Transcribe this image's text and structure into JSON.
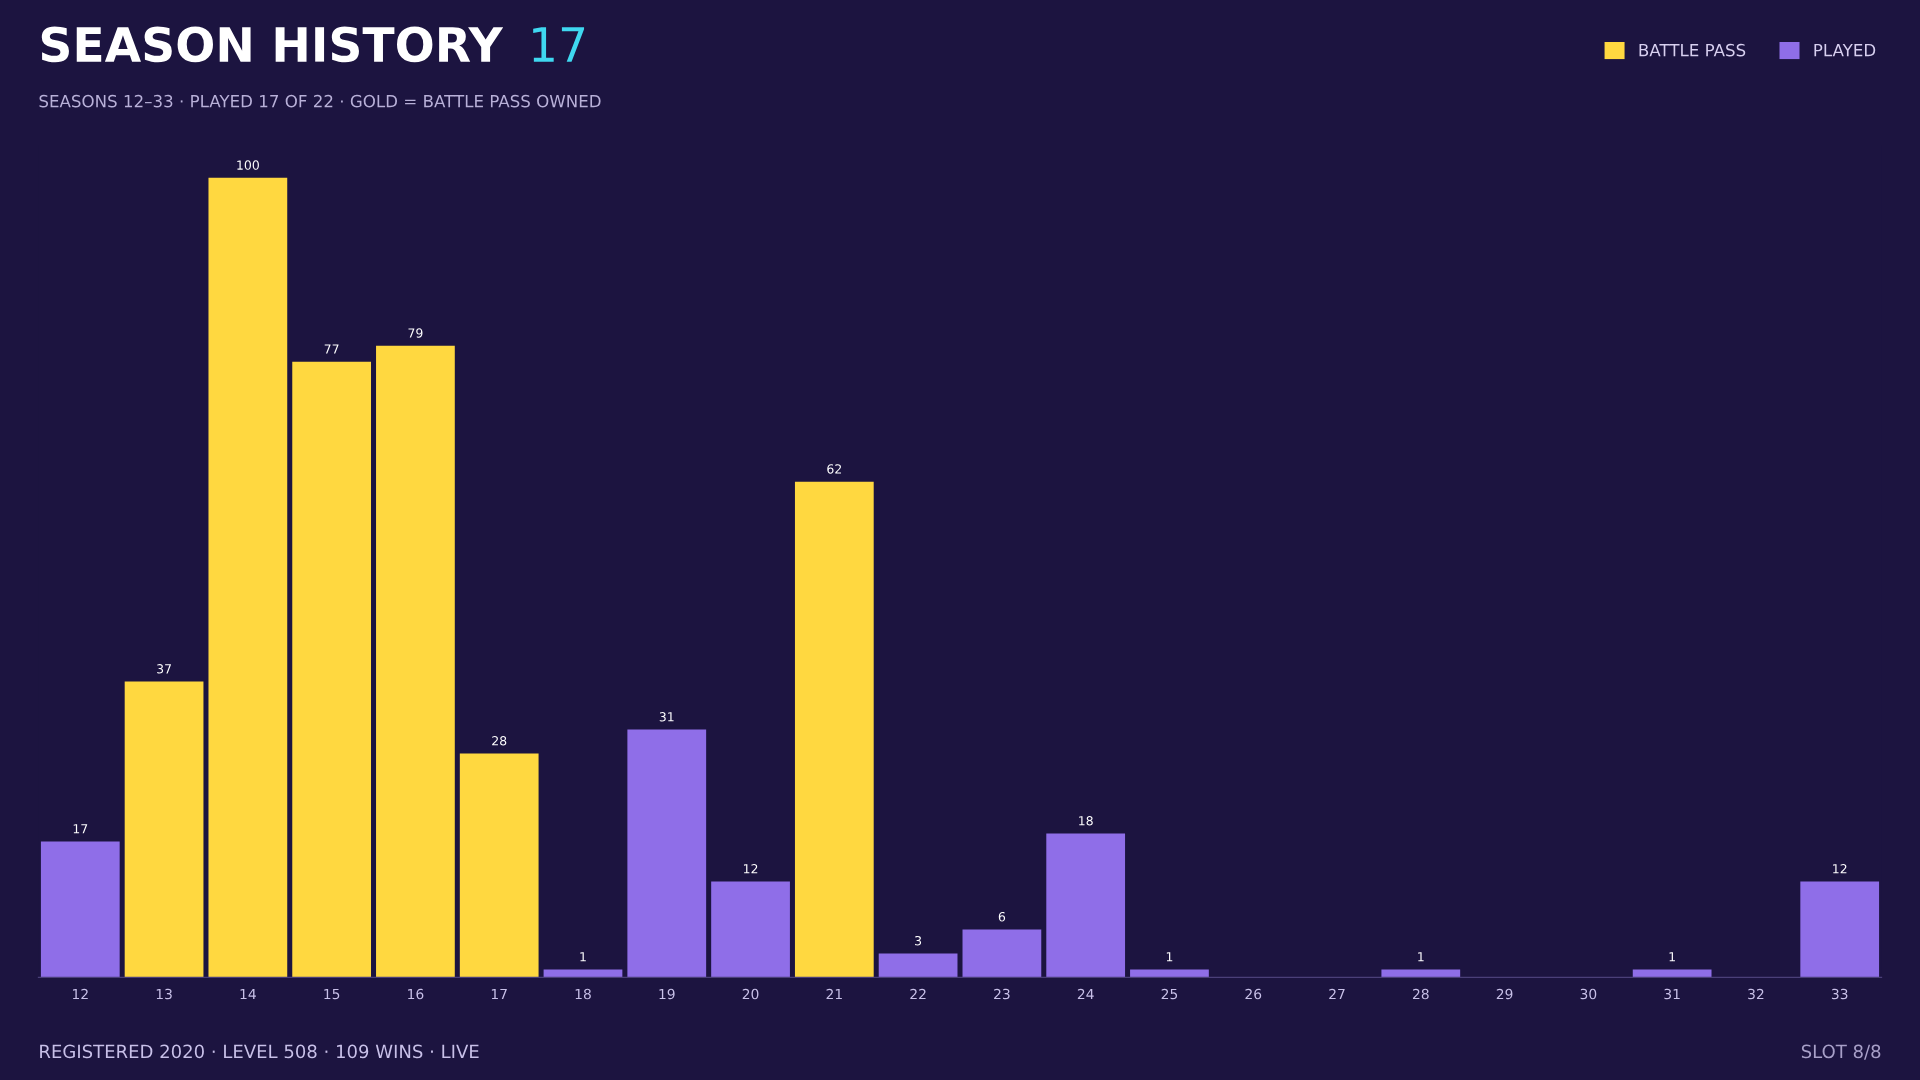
{
  "chart_data": {
    "type": "bar",
    "title": "SEASON HISTORY",
    "subtitle": "SEASONS 12–33 · PLAYED 17 OF 22 · GOLD = BATTLE PASS OWNED",
    "annotations": [
      "17",
      "REGISTERED 2020 · LEVEL 508 · 109 WINS · LIVE",
      "SLOT 8/8"
    ],
    "categories": [
      "12",
      "13",
      "14",
      "15",
      "16",
      "17",
      "18",
      "19",
      "20",
      "21",
      "22",
      "23",
      "24",
      "25",
      "26",
      "27",
      "28",
      "29",
      "30",
      "31",
      "32",
      "33"
    ],
    "series": [
      {
        "name": "BATTLE PASS",
        "color": "#ffd840",
        "values": [
          null,
          37,
          100,
          77,
          79,
          28,
          null,
          null,
          null,
          62,
          null,
          null,
          null,
          null,
          null,
          null,
          null,
          null,
          null,
          null,
          null,
          null
        ],
        "value_labels": [
          null,
          "37",
          "100",
          "77",
          "79",
          "28",
          null,
          null,
          null,
          "62",
          null,
          null,
          null,
          null,
          null,
          null,
          null,
          null,
          null,
          null,
          null,
          null
        ]
      },
      {
        "name": "PLAYED",
        "color": "#8f6ee8",
        "values": [
          17,
          null,
          null,
          null,
          null,
          null,
          1,
          31,
          12,
          null,
          3,
          6,
          18,
          1,
          0,
          0,
          1,
          0,
          0,
          1,
          0,
          12
        ],
        "value_labels": [
          "17",
          null,
          null,
          null,
          null,
          null,
          "1",
          "31",
          "12",
          null,
          "3",
          "6",
          "18",
          "1",
          null,
          null,
          "1",
          null,
          null,
          "1",
          null,
          "12"
        ]
      }
    ],
    "legend": "top right",
    "grid": false
  }
}
